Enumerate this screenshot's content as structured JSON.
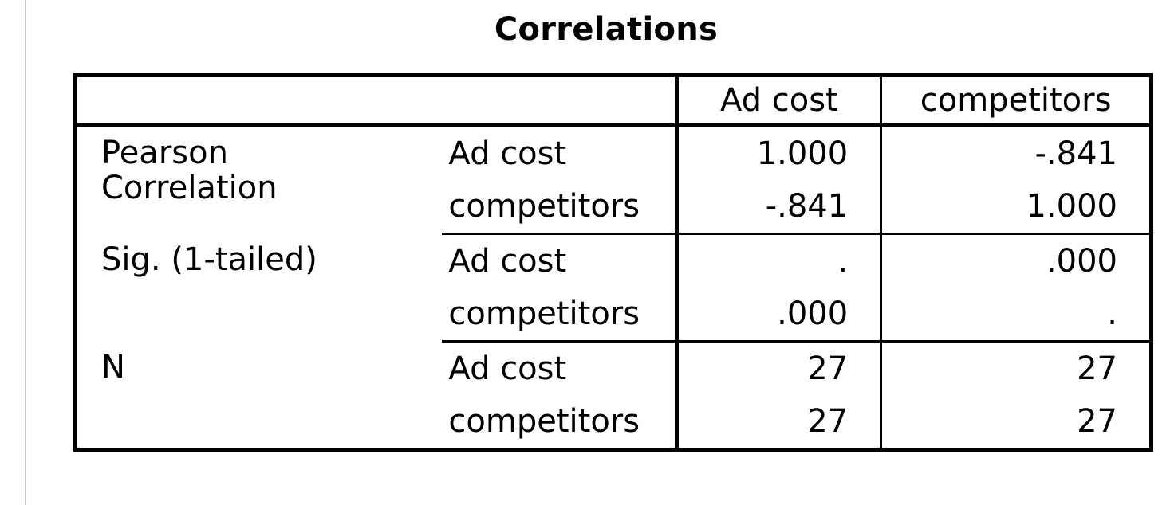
{
  "title": "Correlations",
  "columns": [
    "Ad cost",
    "competitors"
  ],
  "groups": [
    {
      "label_line1": "Pearson",
      "label_line2": "Correlation",
      "rows": [
        {
          "name": "Ad cost",
          "values": [
            "1.000",
            "-.841"
          ]
        },
        {
          "name": "competitors",
          "values": [
            "-.841",
            "1.000"
          ]
        }
      ]
    },
    {
      "label_line1": "Sig. (1-tailed)",
      "label_line2": "",
      "rows": [
        {
          "name": "Ad cost",
          "values": [
            ".",
            ".000"
          ]
        },
        {
          "name": "competitors",
          "values": [
            ".000",
            "."
          ]
        }
      ]
    },
    {
      "label_line1": "N",
      "label_line2": "",
      "rows": [
        {
          "name": "Ad cost",
          "values": [
            "27",
            "27"
          ]
        },
        {
          "name": "competitors",
          "values": [
            "27",
            "27"
          ]
        }
      ]
    }
  ]
}
